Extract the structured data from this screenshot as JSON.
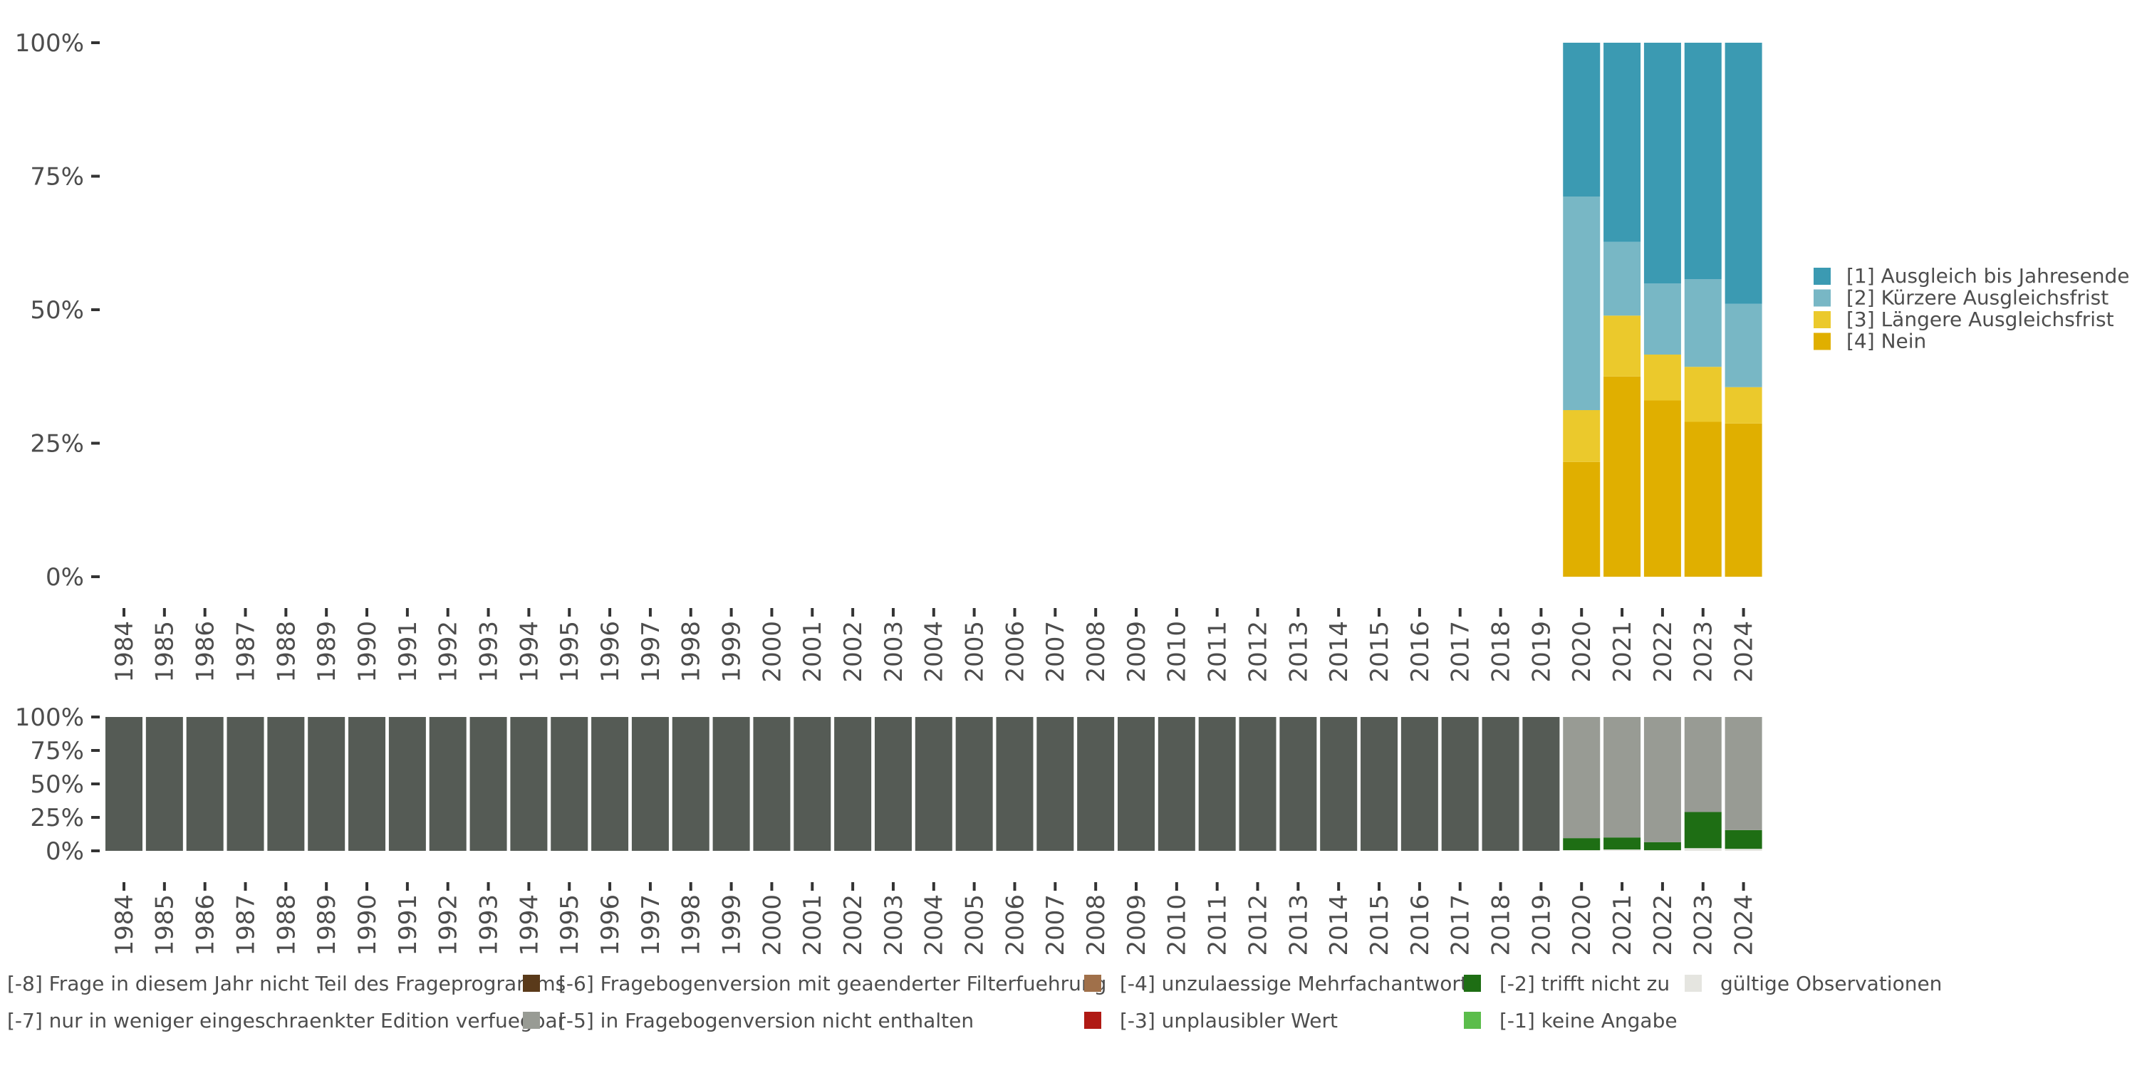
{
  "chart_data": [
    {
      "type": "bar",
      "stacked": true,
      "categories": [
        "1984",
        "1985",
        "1986",
        "1987",
        "1988",
        "1989",
        "1990",
        "1991",
        "1992",
        "1993",
        "1994",
        "1995",
        "1996",
        "1997",
        "1998",
        "1999",
        "2000",
        "2001",
        "2002",
        "2003",
        "2004",
        "2005",
        "2006",
        "2007",
        "2008",
        "2009",
        "2010",
        "2011",
        "2012",
        "2013",
        "2014",
        "2015",
        "2016",
        "2017",
        "2018",
        "2019",
        "2020",
        "2021",
        "2022",
        "2023",
        "2024"
      ],
      "yticks": [
        "0%",
        "25%",
        "50%",
        "75%",
        "100%"
      ],
      "ylim": [
        0,
        100
      ],
      "legend_position": "right",
      "series": [
        {
          "name": "[4] Nein",
          "color": "#E0AF00",
          "values": [
            null,
            null,
            null,
            null,
            null,
            null,
            null,
            null,
            null,
            null,
            null,
            null,
            null,
            null,
            null,
            null,
            null,
            null,
            null,
            null,
            null,
            null,
            null,
            null,
            null,
            null,
            null,
            null,
            null,
            null,
            null,
            null,
            null,
            null,
            null,
            null,
            21.5,
            37.5,
            33.0,
            29.0,
            28.7
          ]
        },
        {
          "name": "[3] Längere Ausgleichsfrist",
          "color": "#EBC92C",
          "values": [
            null,
            null,
            null,
            null,
            null,
            null,
            null,
            null,
            null,
            null,
            null,
            null,
            null,
            null,
            null,
            null,
            null,
            null,
            null,
            null,
            null,
            null,
            null,
            null,
            null,
            null,
            null,
            null,
            null,
            null,
            null,
            null,
            null,
            null,
            null,
            null,
            9.7,
            11.4,
            8.6,
            10.3,
            6.8
          ]
        },
        {
          "name": "[2] Kürzere Ausgleichsfrist",
          "color": "#78B7C5",
          "values": [
            null,
            null,
            null,
            null,
            null,
            null,
            null,
            null,
            null,
            null,
            null,
            null,
            null,
            null,
            null,
            null,
            null,
            null,
            null,
            null,
            null,
            null,
            null,
            null,
            null,
            null,
            null,
            null,
            null,
            null,
            null,
            null,
            null,
            null,
            null,
            null,
            40.0,
            13.8,
            13.3,
            16.4,
            15.6
          ]
        },
        {
          "name": "[1] Ausgleich bis Jahresende",
          "color": "#3B9AB2",
          "values": [
            null,
            null,
            null,
            null,
            null,
            null,
            null,
            null,
            null,
            null,
            null,
            null,
            null,
            null,
            null,
            null,
            null,
            null,
            null,
            null,
            null,
            null,
            null,
            null,
            null,
            null,
            null,
            null,
            null,
            null,
            null,
            null,
            null,
            null,
            null,
            null,
            28.8,
            37.3,
            45.1,
            44.3,
            48.9
          ]
        }
      ]
    },
    {
      "type": "bar",
      "stacked": true,
      "categories": [
        "1984",
        "1985",
        "1986",
        "1987",
        "1988",
        "1989",
        "1990",
        "1991",
        "1992",
        "1993",
        "1994",
        "1995",
        "1996",
        "1997",
        "1998",
        "1999",
        "2000",
        "2001",
        "2002",
        "2003",
        "2004",
        "2005",
        "2006",
        "2007",
        "2008",
        "2009",
        "2010",
        "2011",
        "2012",
        "2013",
        "2014",
        "2015",
        "2016",
        "2017",
        "2018",
        "2019",
        "2020",
        "2021",
        "2022",
        "2023",
        "2024"
      ],
      "yticks": [
        "0%",
        "25%",
        "50%",
        "75%",
        "100%"
      ],
      "ylim": [
        0,
        100
      ],
      "legend_position": "bottom",
      "series": [
        {
          "name": "gültige Observationen",
          "color": "#E5E5E0",
          "values": [
            0,
            0,
            0,
            0,
            0,
            0,
            0,
            0,
            0,
            0,
            0,
            0,
            0,
            0,
            0,
            0,
            0,
            0,
            0,
            0,
            0,
            0,
            0,
            0,
            0,
            0,
            0,
            0,
            0,
            0,
            0,
            0,
            0,
            0,
            0,
            0,
            0.5,
            1.0,
            0.5,
            2.0,
            1.5
          ]
        },
        {
          "name": "[-1] keine Angabe",
          "color": "#5BBD4B",
          "values": [
            0,
            0,
            0,
            0,
            0,
            0,
            0,
            0,
            0,
            0,
            0,
            0,
            0,
            0,
            0,
            0,
            0,
            0,
            0,
            0,
            0,
            0,
            0,
            0,
            0,
            0,
            0,
            0,
            0,
            0,
            0,
            0,
            0,
            0,
            0,
            0,
            0,
            0,
            0,
            0,
            0
          ]
        },
        {
          "name": "[-2] trifft nicht zu",
          "color": "#1E6E14",
          "values": [
            0,
            0,
            0,
            0,
            0,
            0,
            0,
            0,
            0,
            0,
            0,
            0,
            0,
            0,
            0,
            0,
            0,
            0,
            0,
            0,
            0,
            0,
            0,
            0,
            0,
            0,
            0,
            0,
            0,
            0,
            0,
            0,
            0,
            0,
            0,
            0,
            9.0,
            9.0,
            6.0,
            27.0,
            14.0
          ]
        },
        {
          "name": "[-3] unplausibler Wert",
          "color": "#B01A14",
          "values": [
            0,
            0,
            0,
            0,
            0,
            0,
            0,
            0,
            0,
            0,
            0,
            0,
            0,
            0,
            0,
            0,
            0,
            0,
            0,
            0,
            0,
            0,
            0,
            0,
            0,
            0,
            0,
            0,
            0,
            0,
            0,
            0,
            0,
            0,
            0,
            0,
            0,
            0,
            0,
            0,
            0
          ]
        },
        {
          "name": "[-4] unzulaessige Mehrfachantwort",
          "color": "#A0704A",
          "values": [
            0,
            0,
            0,
            0,
            0,
            0,
            0,
            0,
            0,
            0,
            0,
            0,
            0,
            0,
            0,
            0,
            0,
            0,
            0,
            0,
            0,
            0,
            0,
            0,
            0,
            0,
            0,
            0,
            0,
            0,
            0,
            0,
            0,
            0,
            0,
            0,
            0,
            0,
            0,
            0,
            0
          ]
        },
        {
          "name": "[-5] in Fragebogenversion nicht enthalten",
          "color": "#989B94",
          "values": [
            0,
            0,
            0,
            0,
            0,
            0,
            0,
            0,
            0,
            0,
            0,
            0,
            0,
            0,
            0,
            0,
            0,
            0,
            0,
            0,
            0,
            0,
            0,
            0,
            0,
            0,
            0,
            0,
            0,
            0,
            0,
            0,
            0,
            0,
            0,
            0,
            90.5,
            90.0,
            93.5,
            71.0,
            84.5
          ]
        },
        {
          "name": "[-6] Fragebogenversion mit geaenderter Filterfuehrung",
          "color": "#5A3A1A",
          "values": [
            0,
            0,
            0,
            0,
            0,
            0,
            0,
            0,
            0,
            0,
            0,
            0,
            0,
            0,
            0,
            0,
            0,
            0,
            0,
            0,
            0,
            0,
            0,
            0,
            0,
            0,
            0,
            0,
            0,
            0,
            0,
            0,
            0,
            0,
            0,
            0,
            0,
            0,
            0,
            0,
            0
          ]
        },
        {
          "name": "[-7] nur in weniger eingeschraenkter Edition verfuegbar",
          "color": "#5A3A1A",
          "values": [
            0,
            0,
            0,
            0,
            0,
            0,
            0,
            0,
            0,
            0,
            0,
            0,
            0,
            0,
            0,
            0,
            0,
            0,
            0,
            0,
            0,
            0,
            0,
            0,
            0,
            0,
            0,
            0,
            0,
            0,
            0,
            0,
            0,
            0,
            0,
            0,
            0,
            0,
            0,
            0,
            0
          ]
        },
        {
          "name": "[-8] Frage in diesem Jahr nicht Teil des Frageprogramms",
          "color": "#555B55",
          "values": [
            100,
            100,
            100,
            100,
            100,
            100,
            100,
            100,
            100,
            100,
            100,
            100,
            100,
            100,
            100,
            100,
            100,
            100,
            100,
            100,
            100,
            100,
            100,
            100,
            100,
            100,
            100,
            100,
            100,
            100,
            100,
            100,
            100,
            100,
            100,
            100,
            0,
            0,
            0,
            0,
            0
          ]
        }
      ],
      "legend_entries": [
        {
          "label": "[-8] Frage in diesem Jahr nicht Teil des Frageprogramms",
          "color": "#555B55"
        },
        {
          "label": "[-7] nur in weniger eingeschraenkter Edition verfuegbar",
          "color": "#5A3A1A"
        },
        {
          "label": "[-6] Fragebogenversion mit geaenderter Filterfuehrung",
          "color": "#5A3A1A"
        },
        {
          "label": "[-5] in Fragebogenversion nicht enthalten",
          "color": "#989B94"
        },
        {
          "label": "[-4] unzulaessige Mehrfachantwort",
          "color": "#A0704A"
        },
        {
          "label": "[-3] unplausibler Wert",
          "color": "#B01A14"
        },
        {
          "label": "[-2] trifft nicht zu",
          "color": "#1E6E14"
        },
        {
          "label": "[-1] keine Angabe",
          "color": "#5BBD4B"
        },
        {
          "label": "gültige Observationen",
          "color": "#E5E5E0"
        }
      ]
    }
  ]
}
